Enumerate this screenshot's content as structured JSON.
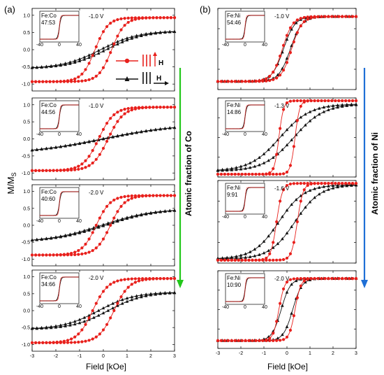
{
  "figure": {
    "panel_a_label": "(a)",
    "panel_b_label": "(b)",
    "ylabel": "M/M",
    "ylabel_sub": "S",
    "xlabel": "Field [kOe]",
    "arrow_a_label": "Atomic fraction of Co",
    "arrow_b_label": "Atomic fraction of Ni",
    "legend": {
      "parallel_label": "H",
      "perpendicular_label": "H"
    },
    "colors": {
      "red": "#e8201c",
      "black": "#111111",
      "green": "#22c71a",
      "blue": "#1f6fd6"
    }
  },
  "chart_data": [
    {
      "type": "line",
      "col": "a",
      "row": 0,
      "voltage": "-1.0 V",
      "composition": "Fe:Co\n47:53",
      "xlim": [
        -3,
        3
      ],
      "ylim": [
        -1.2,
        1.2
      ],
      "xticks": [
        "-3",
        "-2",
        "-1",
        "0",
        "1",
        "2",
        "3"
      ],
      "yticks": [
        "-1.0",
        "-0.5",
        "0.0",
        "0.5",
        "1.0"
      ],
      "red_loop": {
        "ms": 0.93,
        "hc": 0.35,
        "w": 0.55
      },
      "black_loop": {
        "ms": 0.55,
        "hc": 0.12,
        "w": 1.6
      }
    },
    {
      "type": "line",
      "col": "a",
      "row": 1,
      "voltage": "-1.0 V",
      "composition": "Fe:Co\n44:56",
      "xlim": [
        -3,
        3
      ],
      "ylim": [
        -1.2,
        1.2
      ],
      "xticks": [
        "-3",
        "-2",
        "-1",
        "0",
        "1",
        "2",
        "3"
      ],
      "yticks": [
        "-1.0",
        "-0.5",
        "0.0",
        "0.5",
        "1.0"
      ],
      "red_loop": {
        "ms": 0.93,
        "hc": 0.2,
        "w": 0.65
      },
      "black_loop": {
        "ms": 0.45,
        "hc": 0.05,
        "w": 3.2
      }
    },
    {
      "type": "line",
      "col": "a",
      "row": 2,
      "voltage": "-2.0 V",
      "composition": "Fe:Co\n40:60",
      "xlim": [
        -3,
        3
      ],
      "ylim": [
        -1.2,
        1.2
      ],
      "xticks": [
        "-3",
        "-2",
        "-1",
        "0",
        "1",
        "2",
        "3"
      ],
      "yticks": [
        "-1.0",
        "-0.5",
        "0.0",
        "0.5",
        "1.0"
      ],
      "red_loop": {
        "ms": 0.88,
        "hc": 0.3,
        "w": 0.6
      },
      "black_loop": {
        "ms": 0.5,
        "hc": 0.08,
        "w": 2.2
      }
    },
    {
      "type": "line",
      "col": "a",
      "row": 3,
      "voltage": "-2.0 V",
      "composition": "Fe:Co\n34:66",
      "xlim": [
        -3,
        3
      ],
      "ylim": [
        -1.2,
        1.2
      ],
      "xticks": [
        "-3",
        "-2",
        "-1",
        "0",
        "1",
        "2",
        "3"
      ],
      "yticks": [
        "-1.0",
        "-0.5",
        "0.0",
        "0.5",
        "1.0"
      ],
      "red_loop": {
        "ms": 0.95,
        "hc": 0.45,
        "w": 0.65
      },
      "black_loop": {
        "ms": 0.55,
        "hc": 0.2,
        "w": 1.5
      }
    },
    {
      "type": "line",
      "col": "b",
      "row": 0,
      "voltage": "-1.0 V",
      "composition": "Fe:Ni\n54:46",
      "xlim": [
        -3,
        3
      ],
      "ylim": [
        -1.0,
        1.0
      ],
      "xticks": [
        "-3",
        "-2",
        "-1",
        "0",
        "1",
        "2",
        "3"
      ],
      "yticks": [],
      "red_loop": {
        "ms": 0.8,
        "hc": 0.2,
        "w": 0.45
      },
      "black_loop": {
        "ms": 0.8,
        "hc": 0.15,
        "w": 0.5
      }
    },
    {
      "type": "line",
      "col": "b",
      "row": 1,
      "voltage": "-1.3 V",
      "composition": "Fe:Ni\n14:86",
      "xlim": [
        -3,
        3
      ],
      "ylim": [
        -1.0,
        1.0
      ],
      "xticks": [
        "-3",
        "-2",
        "-1",
        "0",
        "1",
        "2",
        "3"
      ],
      "yticks": [],
      "red_loop": {
        "ms": 0.93,
        "hc": 0.35,
        "w": 0.2
      },
      "black_loop": {
        "ms": 0.85,
        "hc": 0.3,
        "w": 1.3
      }
    },
    {
      "type": "line",
      "col": "b",
      "row": 2,
      "voltage": "-1.6 V",
      "composition": "Fe:Ni\n9:91",
      "xlim": [
        -3,
        3
      ],
      "ylim": [
        -1.0,
        1.0
      ],
      "xticks": [
        "-3",
        "-2",
        "-1",
        "0",
        "1",
        "2",
        "3"
      ],
      "yticks": [],
      "red_loop": {
        "ms": 0.93,
        "hc": 0.45,
        "w": 0.25
      },
      "black_loop": {
        "ms": 0.9,
        "hc": 0.35,
        "w": 1.1
      }
    },
    {
      "type": "line",
      "col": "b",
      "row": 3,
      "voltage": "-2.0 V",
      "composition": "Fe:Ni\n10:90",
      "xlim": [
        -3,
        3
      ],
      "ylim": [
        -1.0,
        1.0
      ],
      "xticks": [
        "-3",
        "-2",
        "-1",
        "0",
        "1",
        "2",
        "3"
      ],
      "yticks": [],
      "red_loop": {
        "ms": 0.8,
        "hc": 0.35,
        "w": 0.25
      },
      "black_loop": {
        "ms": 0.8,
        "hc": 0.25,
        "w": 0.4
      }
    }
  ]
}
